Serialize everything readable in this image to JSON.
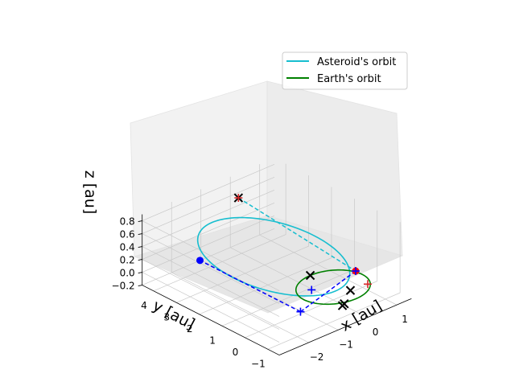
{
  "chart_data": {
    "type": "line",
    "projection": "3d",
    "xlabel": "x [au]",
    "ylabel": "y [au]",
    "zlabel": "z [au]",
    "xlim": [
      -3,
      1.5
    ],
    "ylim": [
      -1.5,
      4.5
    ],
    "zlim": [
      -0.2,
      0.9
    ],
    "x_ticks": [
      "−2",
      "−1",
      "0",
      "1"
    ],
    "y_ticks": [
      "4",
      "3",
      "2",
      "1",
      "0",
      "−1"
    ],
    "z_ticks": [
      "−0.2",
      "0.0",
      "0.2",
      "0.4",
      "0.6",
      "0.8"
    ],
    "grid": true,
    "legend_position": "upper-right",
    "series": [
      {
        "name": "Asteroid's orbit",
        "color": "#17becf",
        "style": "solid",
        "shape": "ellipse",
        "center": [
          -0.7,
          1.7,
          0.3
        ],
        "semi_axis_1": [
          -0.8,
          2.3,
          0.0
        ],
        "semi_axis_2": [
          0.0,
          0.0,
          0.55
        ]
      },
      {
        "name": "Earth's orbit",
        "color": "#008000",
        "style": "solid",
        "shape": "circle",
        "center": [
          0,
          0,
          0
        ],
        "radius": 1.0
      }
    ],
    "lines": [
      {
        "color": "#17becf",
        "style": "dashed",
        "from": [
          -0.5,
          3.5,
          0.85
        ],
        "to": [
          1.0,
          0.3,
          0.0
        ]
      },
      {
        "color": "#0000ff",
        "style": "dashed",
        "from": [
          -1.5,
          -0.5,
          0.0
        ],
        "to": [
          1.0,
          0.3,
          0.0
        ]
      },
      {
        "color": "#0000ff",
        "style": "dashed",
        "from": [
          -1.5,
          -0.5,
          0.0
        ],
        "to": [
          -1.5,
          3.9,
          0.0
        ]
      }
    ],
    "points": [
      {
        "label": "asteroid-marker",
        "marker": "x",
        "color": "#000000",
        "xyz": [
          -0.5,
          3.5,
          0.85
        ]
      },
      {
        "label": "asteroid-marker",
        "marker": "+",
        "color": "#d62728",
        "xyz": [
          -0.5,
          3.5,
          0.85
        ]
      },
      {
        "label": "earth-marker",
        "marker": "o",
        "color": "#ff0000",
        "xyz": [
          1.0,
          0.3,
          0.0
        ]
      },
      {
        "label": "earth-marker",
        "marker": "+",
        "color": "#0000ff",
        "xyz": [
          1.0,
          0.3,
          0.0
        ]
      },
      {
        "label": "earth-marker",
        "marker": "x",
        "color": "#000000",
        "xyz": [
          0.0,
          1.0,
          0.0
        ]
      },
      {
        "label": "earth-marker",
        "marker": "x",
        "color": "#000000",
        "xyz": [
          0.2,
          -0.5,
          0.0
        ]
      },
      {
        "label": "earth-marker",
        "marker": "x",
        "color": "#000000",
        "xyz": [
          -0.4,
          -1.0,
          0.0
        ]
      },
      {
        "label": "earth-marker",
        "marker": "x",
        "color": "#000000",
        "xyz": [
          -0.5,
          -1.05,
          0.0
        ]
      },
      {
        "label": "earth-marker",
        "marker": "+",
        "color": "#d62728",
        "xyz": [
          0.75,
          -0.55,
          0.0
        ]
      },
      {
        "label": "earth-marker",
        "marker": "+",
        "color": "#0000ff",
        "xyz": [
          -0.5,
          0.3,
          0.0
        ]
      },
      {
        "label": "earth-marker",
        "marker": "+",
        "color": "#0000ff",
        "xyz": [
          -1.5,
          -0.5,
          0.0
        ]
      },
      {
        "label": "asteroid-marker",
        "marker": "o",
        "color": "#0000ff",
        "xyz": [
          -1.5,
          3.9,
          0.0
        ]
      }
    ]
  }
}
